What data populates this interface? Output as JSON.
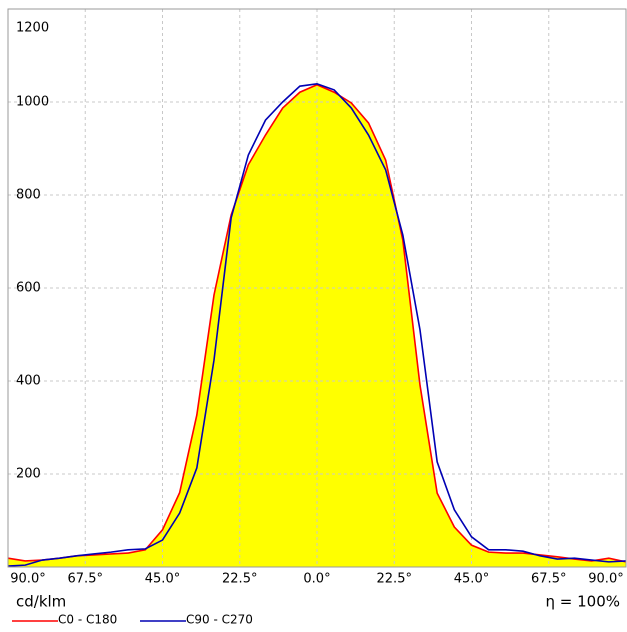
{
  "chart_data": {
    "type": "line",
    "x": [
      -90,
      -85,
      -80,
      -75,
      -70,
      -65,
      -60,
      -55,
      -50,
      -45,
      -40,
      -35,
      -30,
      -25,
      -20,
      -15,
      -10,
      -5,
      0,
      5,
      10,
      15,
      20,
      25,
      30,
      35,
      40,
      45,
      50,
      55,
      60,
      65,
      70,
      75,
      80,
      85,
      90
    ],
    "series": [
      {
        "name": "C0 - C180",
        "color": "#ff0000",
        "fill": "#ffff00",
        "values": [
          19,
          13,
          15,
          19,
          24,
          26,
          28,
          30,
          37,
          80,
          160,
          327,
          585,
          757,
          865,
          929,
          987,
          1021,
          1037,
          1021,
          998,
          955,
          875,
          703,
          391,
          159,
          86,
          47,
          32,
          30,
          30,
          26,
          22,
          17,
          13,
          19,
          11
        ]
      },
      {
        "name": "C90 - C270",
        "color": "#0000b4",
        "values": [
          2,
          4,
          15,
          19,
          24,
          28,
          32,
          37,
          39,
          58,
          116,
          213,
          445,
          751,
          886,
          961,
          1000,
          1034,
          1039,
          1026,
          987,
          929,
          854,
          714,
          510,
          226,
          123,
          65,
          37,
          37,
          34,
          24,
          17,
          19,
          15,
          11,
          13
        ]
      }
    ],
    "xlim": [
      -90,
      90
    ],
    "xticks": [
      {
        "value": -90,
        "label": "90.0°"
      },
      {
        "value": -67.5,
        "label": "67.5°"
      },
      {
        "value": -45,
        "label": "45.0°"
      },
      {
        "value": -22.5,
        "label": "22.5°"
      },
      {
        "value": 0,
        "label": "0.0°"
      },
      {
        "value": 22.5,
        "label": "22.5°"
      },
      {
        "value": 45,
        "label": "45.0°"
      },
      {
        "value": 67.5,
        "label": "67.5°"
      },
      {
        "value": 90,
        "label": "90.0°"
      }
    ],
    "ylim": [
      0,
      1200
    ],
    "yticks": [
      200,
      400,
      600,
      800,
      1000,
      1200
    ],
    "ylabel": "cd/klm",
    "annotation": "η = 100%",
    "grid": true
  }
}
